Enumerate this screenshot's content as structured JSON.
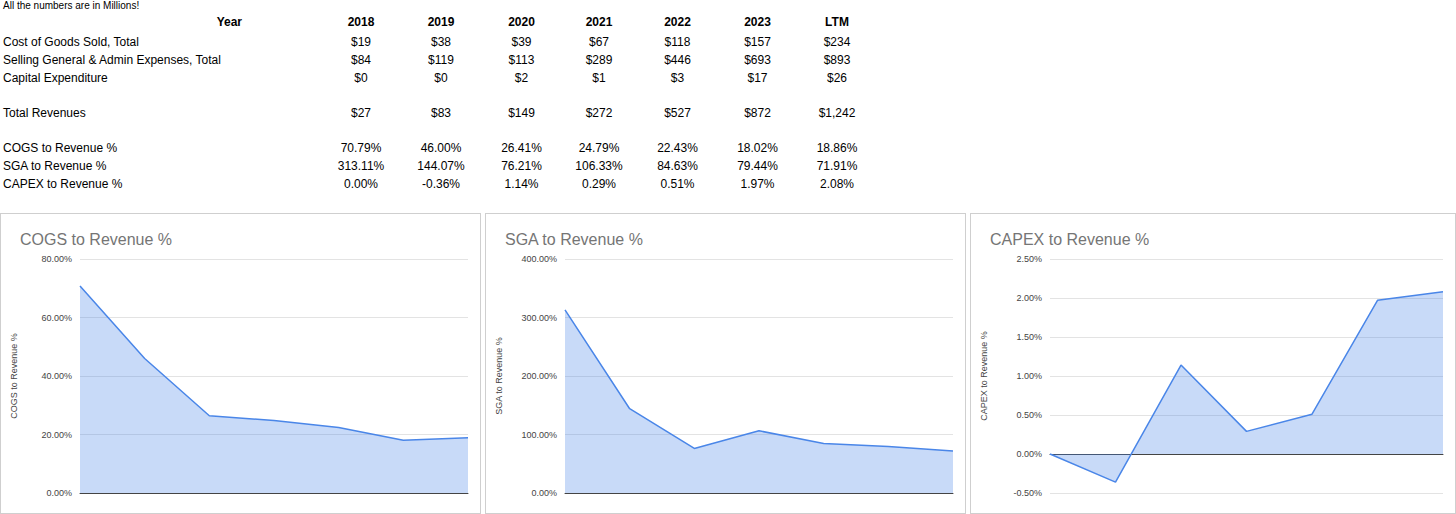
{
  "header": "All the numbers are in Millions!",
  "table": {
    "columns": [
      "Year",
      "2018",
      "2019",
      "2020",
      "2021",
      "2022",
      "2023",
      "LTM"
    ],
    "groups": [
      [
        [
          "Cost of Goods Sold, Total",
          "$19",
          "$38",
          "$39",
          "$67",
          "$118",
          "$157",
          "$234"
        ],
        [
          "Selling General & Admin Expenses, Total",
          "$84",
          "$119",
          "$113",
          "$289",
          "$446",
          "$693",
          "$893"
        ],
        [
          "Capital Expenditure",
          "$0",
          "$0",
          "$2",
          "$1",
          "$3",
          "$17",
          "$26"
        ]
      ],
      [
        [
          "Total Revenues",
          "$27",
          "$83",
          "$149",
          "$272",
          "$527",
          "$872",
          "$1,242"
        ]
      ],
      [
        [
          "COGS to Revenue %",
          "70.79%",
          "46.00%",
          "26.41%",
          "24.79%",
          "22.43%",
          "18.02%",
          "18.86%"
        ],
        [
          "SGA to Revenue %",
          "313.11%",
          "144.07%",
          "76.21%",
          "106.33%",
          "84.63%",
          "79.44%",
          "71.91%"
        ],
        [
          "CAPEX to Revenue %",
          "0.00%",
          "-0.36%",
          "1.14%",
          "0.29%",
          "0.51%",
          "1.97%",
          "2.08%"
        ]
      ]
    ]
  },
  "chart_data": [
    {
      "type": "area",
      "title": "COGS to Revenue %",
      "y_label": "COGS to Revenue %",
      "categories": [
        null,
        null,
        null,
        null,
        null,
        null,
        null
      ],
      "values": [
        70.79,
        46.0,
        26.41,
        24.79,
        22.43,
        18.02,
        18.86
      ],
      "color": "#4a86e8",
      "ylim": [
        0,
        80
      ],
      "yticks": [
        {
          "value": 0,
          "label": "0.00%"
        },
        {
          "value": 20,
          "label": "20.00%"
        },
        {
          "value": 40,
          "label": "40.00%"
        },
        {
          "value": 60,
          "label": "60.00%"
        },
        {
          "value": 80,
          "label": "80.00%"
        }
      ],
      "grid": true,
      "tick_labels": "y"
    },
    {
      "type": "area",
      "title": "SGA to Revenue %",
      "y_label": "SGA to Revenue %",
      "categories": [
        null,
        null,
        null,
        null,
        null,
        null,
        null
      ],
      "values": [
        313.11,
        144.07,
        76.21,
        106.33,
        84.63,
        79.44,
        71.91
      ],
      "color": "#4a86e8",
      "ylim": [
        0,
        400
      ],
      "yticks": [
        {
          "value": 0,
          "label": "0.00%"
        },
        {
          "value": 100,
          "label": "100.00%"
        },
        {
          "value": 200,
          "label": "200.00%"
        },
        {
          "value": 300,
          "label": "300.00%"
        },
        {
          "value": 400,
          "label": "400.00%"
        }
      ],
      "grid": true,
      "tick_labels": "y"
    },
    {
      "type": "area",
      "title": "CAPEX to Revenue %",
      "y_label": "CAPEX to Revenue %",
      "categories": [
        null,
        null,
        null,
        null,
        null,
        null,
        null
      ],
      "values": [
        0.0,
        -0.36,
        1.14,
        0.29,
        0.51,
        1.97,
        2.08
      ],
      "color": "#4a86e8",
      "ylim": [
        -0.5,
        2.5
      ],
      "yticks": [
        {
          "value": -0.5,
          "label": "-0.50%"
        },
        {
          "value": 0,
          "label": "0.00%"
        },
        {
          "value": 0.5,
          "label": "0.50%"
        },
        {
          "value": 1,
          "label": "1.00%"
        },
        {
          "value": 1.5,
          "label": "1.50%"
        },
        {
          "value": 2,
          "label": "2.00%"
        },
        {
          "value": 2.5,
          "label": "2.50%"
        }
      ],
      "grid": true,
      "tick_labels": "y"
    }
  ]
}
